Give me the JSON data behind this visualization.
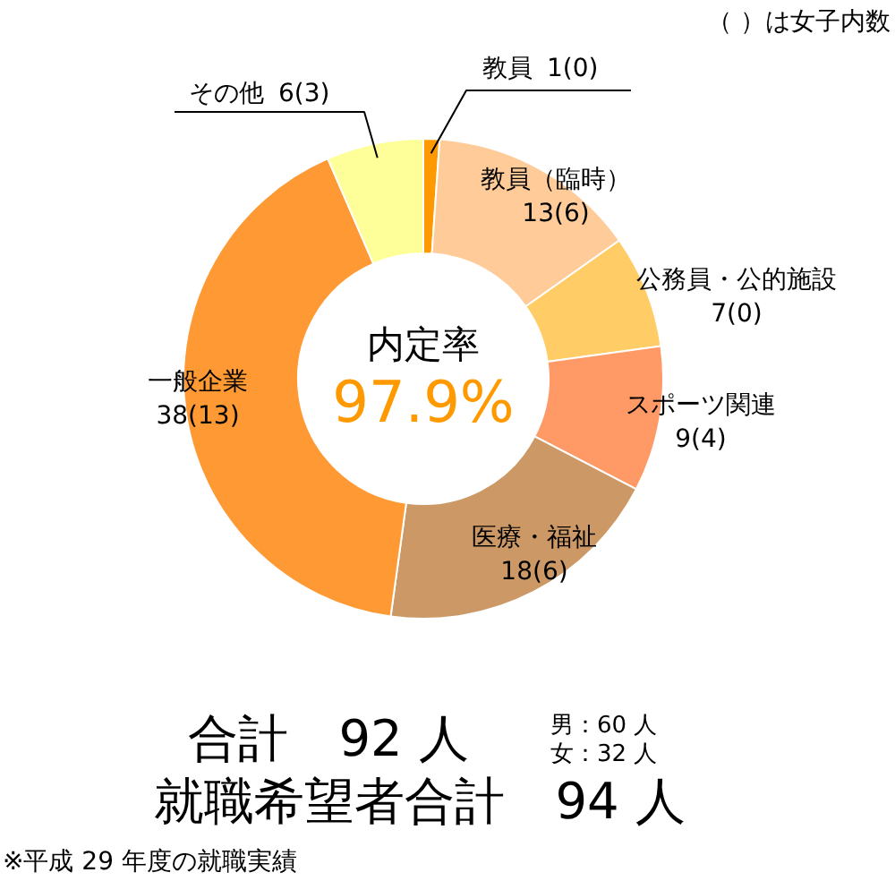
{
  "chart_data": {
    "type": "donut",
    "categories": [
      "教員",
      "教員（臨時）",
      "公務員・公的施設",
      "スポーツ関連",
      "医療・福祉",
      "一般企業",
      "その他"
    ],
    "values": [
      1,
      13,
      7,
      9,
      18,
      38,
      6
    ],
    "value_labels": [
      "1(0)",
      "13(6)",
      "7(0)",
      "9(4)",
      "18(6)",
      "38(13)",
      "6(3)"
    ],
    "colors": [
      "#ff9900",
      "#ffcc99",
      "#ffcc66",
      "#ff9966",
      "#cc9966",
      "#ff9933",
      "#ffff99"
    ],
    "annotations": [
      "（ ）は女子内数",
      "内定率",
      "97.9%",
      "合計　92 人",
      "男：60 人",
      "女：32 人",
      "就職希望者合計　94 人",
      "※平成 29 年度の就職実績"
    ]
  }
}
